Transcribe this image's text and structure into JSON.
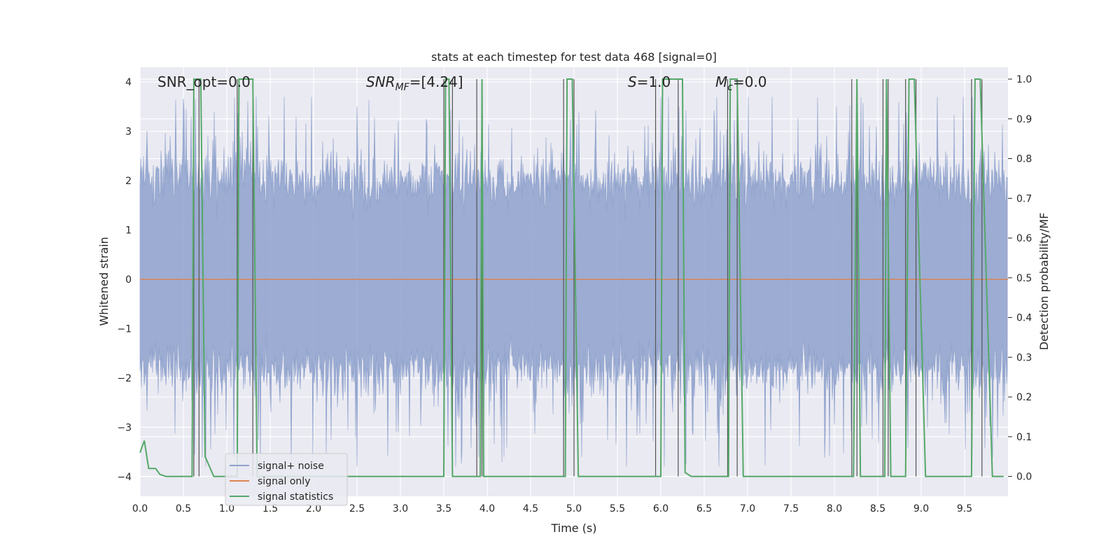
{
  "chart_data": {
    "type": "line",
    "title": "stats at each timestep for test data 468 [signal=0]",
    "xlabel": "Time (s)",
    "ylabel_left": "Whitened strain",
    "ylabel_right": "Detection probability/MF",
    "xlim": [
      0.0,
      10.0
    ],
    "ylim_left": [
      -4.4,
      4.3
    ],
    "ylim_right": [
      -0.05,
      1.03
    ],
    "x_ticks": [
      "0.0",
      "0.5",
      "1.0",
      "1.5",
      "2.0",
      "2.5",
      "3.0",
      "3.5",
      "4.0",
      "4.5",
      "5.0",
      "5.5",
      "6.0",
      "6.5",
      "7.0",
      "7.5",
      "8.0",
      "8.5",
      "9.0",
      "9.5"
    ],
    "y_ticks_left": [
      "−4",
      "−3",
      "−2",
      "−1",
      "0",
      "1",
      "2",
      "3",
      "4"
    ],
    "y_ticks_right": [
      "0.0",
      "0.1",
      "0.2",
      "0.3",
      "0.4",
      "0.5",
      "0.6",
      "0.7",
      "0.8",
      "0.9",
      "1.0"
    ],
    "grid": true,
    "legend_position": "lower-left",
    "annotations": {
      "snr_opt": "SNR_opt=0.0",
      "snr_mf": "SNR",
      "snr_mf_sub": "MF",
      "snr_mf_val": "=[4.24]",
      "s_label": "S",
      "s_val": "=1.0",
      "mc_label": "M",
      "mc_sub": "c",
      "mc_val": "=0.0"
    },
    "series": [
      {
        "name": "signal+ noise",
        "color": "#8ea1cc",
        "description_envelope": {
          "typical_range": [
            -1.8,
            2.0
          ],
          "peak_range": [
            -3.8,
            3.7
          ]
        }
      },
      {
        "name": "signal only",
        "color": "#dd8452",
        "values_constant": 0.0
      },
      {
        "name": "signal statistics",
        "color": "#55a868",
        "points": [
          [
            0.0,
            0.06
          ],
          [
            0.05,
            0.09
          ],
          [
            0.1,
            0.02
          ],
          [
            0.18,
            0.02
          ],
          [
            0.23,
            0.005
          ],
          [
            0.3,
            0.0
          ],
          [
            0.6,
            0.0
          ],
          [
            0.62,
            1.0
          ],
          [
            0.66,
            1.0
          ],
          [
            0.7,
            1.0
          ],
          [
            0.75,
            0.05
          ],
          [
            0.85,
            0.0
          ],
          [
            1.12,
            0.0
          ],
          [
            1.14,
            1.0
          ],
          [
            1.2,
            1.0
          ],
          [
            1.3,
            1.0
          ],
          [
            1.35,
            0.0
          ],
          [
            3.5,
            0.0
          ],
          [
            3.52,
            1.0
          ],
          [
            3.56,
            1.0
          ],
          [
            3.6,
            0.0
          ],
          [
            3.92,
            0.0
          ],
          [
            3.94,
            1.0
          ],
          [
            3.96,
            0.0
          ],
          [
            4.9,
            0.0
          ],
          [
            4.92,
            1.0
          ],
          [
            4.98,
            1.0
          ],
          [
            5.05,
            0.0
          ],
          [
            6.0,
            0.0
          ],
          [
            6.02,
            1.0
          ],
          [
            6.15,
            1.0
          ],
          [
            6.25,
            1.0
          ],
          [
            6.28,
            0.01
          ],
          [
            6.35,
            0.0
          ],
          [
            6.78,
            0.0
          ],
          [
            6.8,
            1.0
          ],
          [
            6.88,
            1.0
          ],
          [
            6.95,
            0.0
          ],
          [
            8.22,
            0.0
          ],
          [
            8.26,
            1.0
          ],
          [
            8.3,
            0.0
          ],
          [
            8.58,
            0.0
          ],
          [
            8.6,
            1.0
          ],
          [
            8.65,
            0.0
          ],
          [
            8.82,
            0.0
          ],
          [
            8.86,
            1.0
          ],
          [
            8.92,
            1.0
          ],
          [
            9.05,
            0.0
          ],
          [
            9.58,
            0.0
          ],
          [
            9.62,
            1.0
          ],
          [
            9.68,
            1.0
          ],
          [
            9.82,
            0.0
          ],
          [
            9.95,
            0.0
          ]
        ]
      }
    ],
    "vertical_markers_s": [
      0.62,
      0.68,
      1.12,
      1.3,
      3.5,
      3.6,
      3.88,
      3.94,
      4.88,
      5.0,
      5.94,
      6.2,
      6.77,
      6.88,
      8.2,
      8.26,
      8.56,
      8.62,
      8.82,
      8.94,
      9.58,
      9.7
    ]
  }
}
